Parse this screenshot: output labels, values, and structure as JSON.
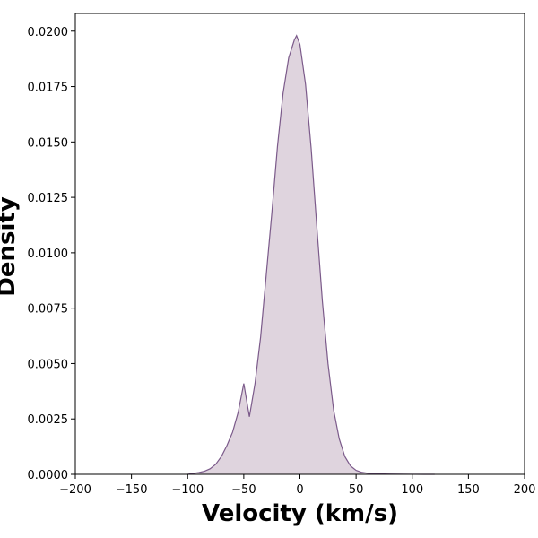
{
  "chart_data": {
    "type": "area",
    "title": "",
    "xlabel": "Velocity (km/s)",
    "ylabel": "Density",
    "xlim": [
      -200,
      200
    ],
    "ylim": [
      0,
      0.0208
    ],
    "x_ticks": [
      -200,
      -150,
      -100,
      -50,
      0,
      50,
      100,
      150,
      200
    ],
    "x_tick_labels": [
      "−200",
      "−150",
      "−100",
      "−50",
      "0",
      "50",
      "100",
      "150",
      "200"
    ],
    "y_ticks": [
      0,
      0.0025,
      0.005,
      0.0075,
      0.01,
      0.0125,
      0.015,
      0.0175,
      0.02
    ],
    "y_tick_labels": [
      "0.0000",
      "0.0025",
      "0.0050",
      "0.0075",
      "0.0100",
      "0.0125",
      "0.0150",
      "0.0175",
      "0.0200"
    ],
    "grid": false,
    "legend": "none",
    "colors": {
      "line": "#7b5a8a",
      "fill": "#dfd4de"
    },
    "series": [
      {
        "x": [
          -100,
          -95,
          -90,
          -85,
          -80,
          -75,
          -70,
          -65,
          -60,
          -55,
          -50,
          -45,
          -40,
          -35,
          -30,
          -25,
          -20,
          -15,
          -10,
          -5,
          -3,
          0,
          5,
          10,
          15,
          20,
          25,
          30,
          35,
          40,
          45,
          50,
          55,
          60,
          65,
          70,
          75,
          80,
          90,
          100,
          110,
          120
        ],
        "y": [
          0.0,
          4e-05,
          8e-05,
          0.00014,
          0.00025,
          0.00045,
          0.0008,
          0.0013,
          0.0019,
          0.0028,
          0.0041,
          0.0026,
          0.0041,
          0.0062,
          0.009,
          0.0118,
          0.0148,
          0.0172,
          0.0188,
          0.0196,
          0.0198,
          0.0194,
          0.0176,
          0.0147,
          0.0112,
          0.0078,
          0.005,
          0.0029,
          0.0016,
          0.0008,
          0.00038,
          0.00018,
          9e-05,
          5e-05,
          3e-05,
          2e-05,
          1.5e-05,
          1e-05,
          6e-06,
          3e-06,
          1e-06,
          0.0
        ]
      }
    ]
  }
}
